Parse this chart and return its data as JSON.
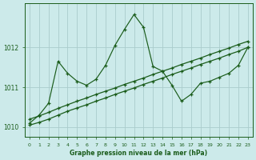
{
  "x": [
    0,
    1,
    2,
    3,
    4,
    5,
    6,
    7,
    8,
    9,
    10,
    11,
    12,
    13,
    14,
    15,
    16,
    17,
    18,
    19,
    20,
    21,
    22,
    23
  ],
  "line_straight1": [
    1010.05,
    1010.12,
    1010.2,
    1010.3,
    1010.4,
    1010.48,
    1010.56,
    1010.65,
    1010.73,
    1010.82,
    1010.9,
    1010.98,
    1011.07,
    1011.15,
    1011.23,
    1011.32,
    1011.4,
    1011.48,
    1011.57,
    1011.65,
    1011.73,
    1011.82,
    1011.9,
    1012.0
  ],
  "line_straight2": [
    1010.2,
    1010.28,
    1010.37,
    1010.47,
    1010.56,
    1010.65,
    1010.73,
    1010.82,
    1010.9,
    1010.98,
    1011.07,
    1011.15,
    1011.23,
    1011.32,
    1011.4,
    1011.48,
    1011.57,
    1011.65,
    1011.73,
    1011.82,
    1011.9,
    1011.98,
    1012.07,
    1012.15
  ],
  "line_wiggly": [
    1010.1,
    1010.3,
    1010.6,
    1011.65,
    1011.35,
    1011.15,
    1011.05,
    1011.2,
    1011.55,
    1012.05,
    1012.45,
    1012.82,
    1012.5,
    1011.52,
    1011.4,
    1011.05,
    1010.65,
    1010.82,
    1011.1,
    1011.15,
    1011.25,
    1011.35,
    1011.55,
    1012.0
  ],
  "bg_color": "#cceaea",
  "grid_color": "#aacccc",
  "line_color": "#1a5c1a",
  "xlabel": "Graphe pression niveau de la mer (hPa)",
  "yticks": [
    1010,
    1011,
    1012
  ],
  "ylim": [
    1009.75,
    1013.1
  ],
  "xlim": [
    -0.5,
    23.5
  ]
}
